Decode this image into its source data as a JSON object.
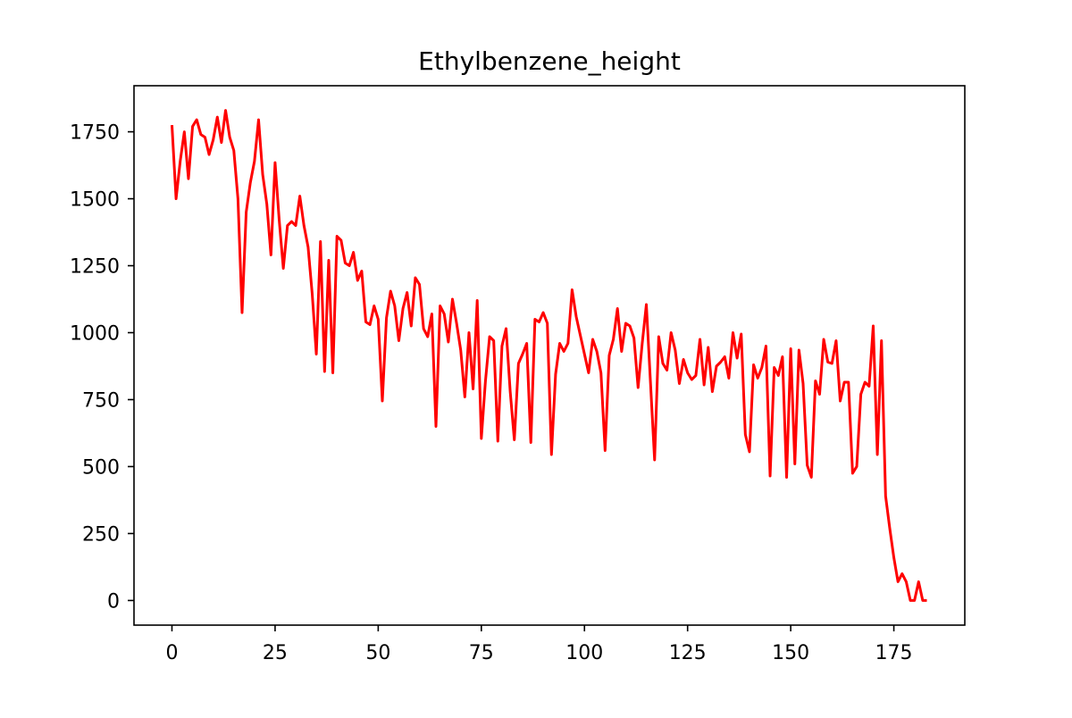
{
  "chart_data": {
    "type": "line",
    "title": "Ethylbenzene_height",
    "xlabel": "",
    "ylabel": "",
    "xlim": [
      -9.2,
      192.2
    ],
    "ylim": [
      -92,
      1922
    ],
    "xticks": [
      0,
      25,
      50,
      75,
      100,
      125,
      150,
      175
    ],
    "yticks": [
      0,
      250,
      500,
      750,
      1000,
      1250,
      1500,
      1750
    ],
    "grid": false,
    "legend": "none",
    "series": [
      {
        "color": "#ff0000",
        "x": [
          0,
          1,
          2,
          3,
          4,
          5,
          6,
          7,
          8,
          9,
          10,
          11,
          12,
          13,
          14,
          15,
          16,
          17,
          18,
          19,
          20,
          21,
          22,
          23,
          24,
          25,
          26,
          27,
          28,
          29,
          30,
          31,
          32,
          33,
          34,
          35,
          36,
          37,
          38,
          39,
          40,
          41,
          42,
          43,
          44,
          45,
          46,
          47,
          48,
          49,
          50,
          51,
          52,
          53,
          54,
          55,
          56,
          57,
          58,
          59,
          60,
          61,
          62,
          63,
          64,
          65,
          66,
          67,
          68,
          69,
          70,
          71,
          72,
          73,
          74,
          75,
          76,
          77,
          78,
          79,
          80,
          81,
          82,
          83,
          84,
          85,
          86,
          87,
          88,
          89,
          90,
          91,
          92,
          93,
          94,
          95,
          96,
          97,
          98,
          99,
          100,
          101,
          102,
          103,
          104,
          105,
          106,
          107,
          108,
          109,
          110,
          111,
          112,
          113,
          114,
          115,
          116,
          117,
          118,
          119,
          120,
          121,
          122,
          123,
          124,
          125,
          126,
          127,
          128,
          129,
          130,
          131,
          132,
          133,
          134,
          135,
          136,
          137,
          138,
          139,
          140,
          141,
          142,
          143,
          144,
          145,
          146,
          147,
          148,
          149,
          150,
          151,
          152,
          153,
          154,
          155,
          156,
          157,
          158,
          159,
          160,
          161,
          162,
          163,
          164,
          165,
          166,
          167,
          168,
          169,
          170,
          171,
          172,
          173,
          174,
          175,
          176,
          177,
          178,
          179,
          180,
          181,
          182,
          183
        ],
        "y": [
          1775,
          1500,
          1640,
          1750,
          1575,
          1770,
          1795,
          1740,
          1730,
          1665,
          1720,
          1805,
          1710,
          1830,
          1730,
          1680,
          1500,
          1075,
          1450,
          1560,
          1640,
          1795,
          1590,
          1480,
          1290,
          1635,
          1420,
          1240,
          1400,
          1415,
          1400,
          1510,
          1400,
          1320,
          1145,
          920,
          1340,
          855,
          1270,
          850,
          1360,
          1345,
          1260,
          1250,
          1300,
          1195,
          1230,
          1040,
          1030,
          1100,
          1050,
          745,
          1055,
          1155,
          1100,
          970,
          1090,
          1150,
          1025,
          1205,
          1180,
          1015,
          985,
          1070,
          650,
          1100,
          1070,
          965,
          1125,
          1035,
          935,
          760,
          1000,
          790,
          1120,
          605,
          820,
          985,
          970,
          595,
          950,
          1015,
          780,
          600,
          885,
          920,
          960,
          590,
          1050,
          1040,
          1075,
          1035,
          545,
          845,
          960,
          930,
          960,
          1160,
          1060,
          990,
          920,
          850,
          975,
          930,
          850,
          560,
          915,
          975,
          1090,
          930,
          1035,
          1025,
          980,
          795,
          960,
          1105,
          815,
          525,
          985,
          885,
          860,
          1000,
          935,
          810,
          900,
          850,
          825,
          840,
          975,
          805,
          945,
          780,
          875,
          890,
          910,
          830,
          1000,
          905,
          995,
          620,
          555,
          880,
          830,
          870,
          950,
          465,
          870,
          840,
          910,
          460,
          940,
          510,
          935,
          810,
          505,
          460,
          820,
          770,
          975,
          890,
          885,
          970,
          745,
          815,
          815,
          475,
          500,
          770,
          815,
          800,
          1025,
          545,
          970,
          390,
          270,
          160,
          70,
          100,
          70,
          0,
          0,
          70,
          0,
          0
        ]
      }
    ]
  }
}
